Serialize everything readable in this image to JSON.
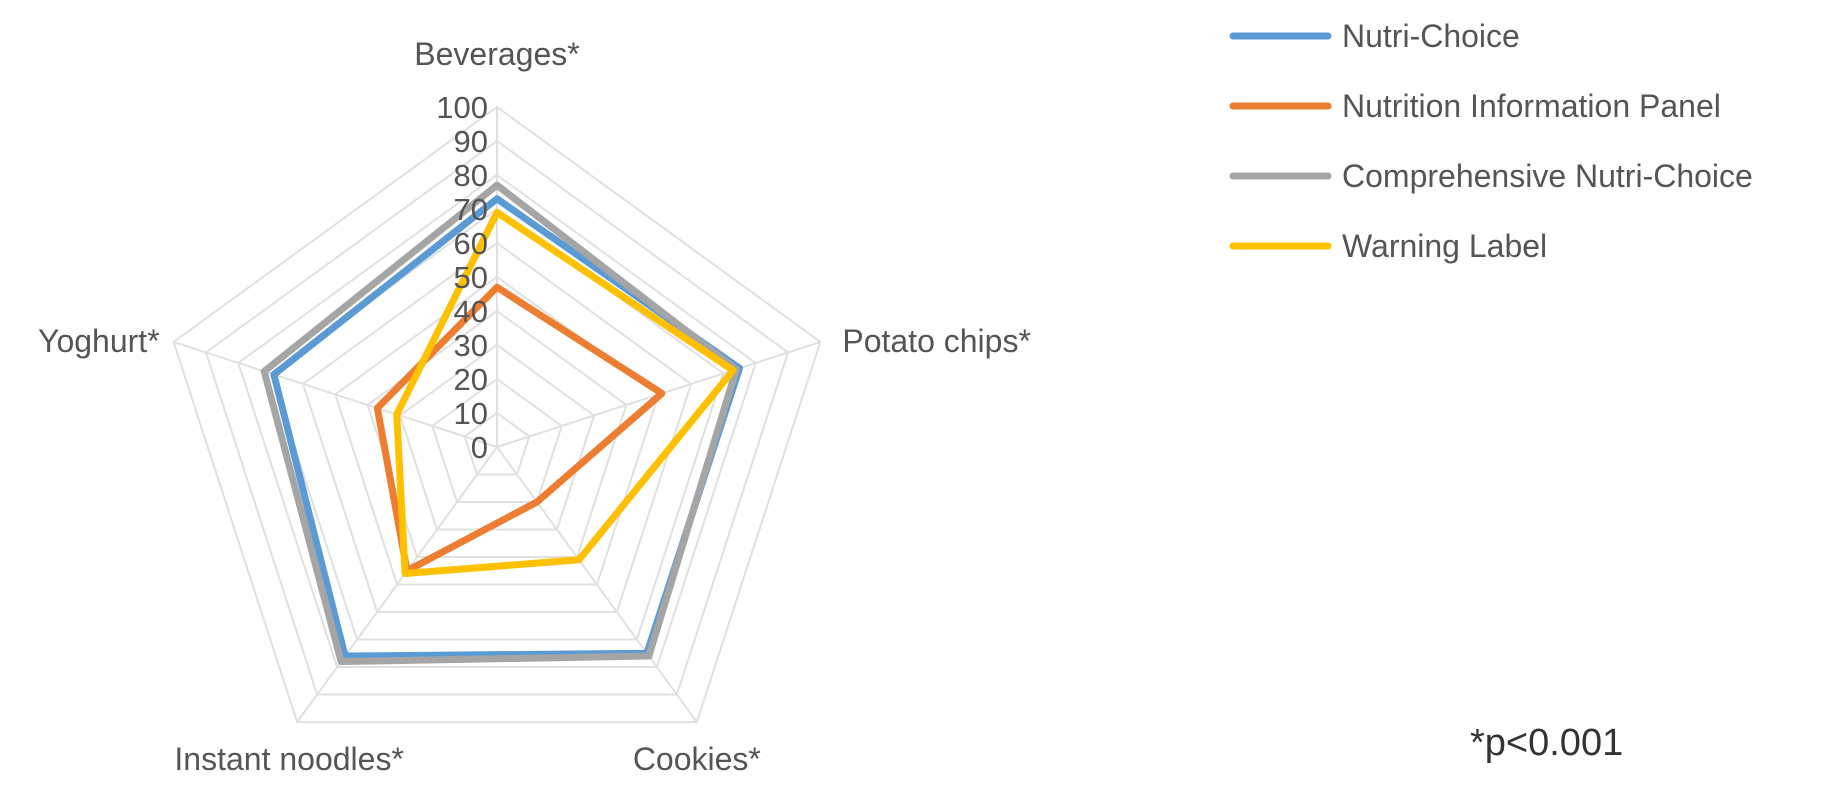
{
  "chart_data": {
    "type": "radar",
    "categories": [
      "Beverages*",
      "Potato chips*",
      "Cookies*",
      "Instant noodles*",
      "Yoghurt*"
    ],
    "rlim": [
      0,
      100
    ],
    "ticks": [
      "0",
      "10",
      "20",
      "30",
      "40",
      "50",
      "60",
      "70",
      "80",
      "90",
      "100"
    ],
    "tick_values": [
      0,
      10,
      20,
      30,
      40,
      50,
      60,
      70,
      80,
      90,
      100
    ],
    "grid": true,
    "legend_position": "top-right",
    "series": [
      {
        "name": "Nutri-Choice",
        "color": "#5b9bd5",
        "values": [
          73,
          75,
          75,
          76,
          69
        ]
      },
      {
        "name": "Nutrition Information Panel",
        "color": "#ed7d31",
        "values": [
          47,
          51,
          20,
          45,
          37
        ]
      },
      {
        "name": "Comprehensive Nutri-Choice",
        "color": "#a5a5a5",
        "values": [
          77,
          74,
          76,
          78,
          72
        ]
      },
      {
        "name": "Warning Label",
        "color": "#ffc000",
        "values": [
          69,
          73,
          41,
          46,
          31
        ]
      }
    ],
    "annotation": "*p<0.001"
  }
}
